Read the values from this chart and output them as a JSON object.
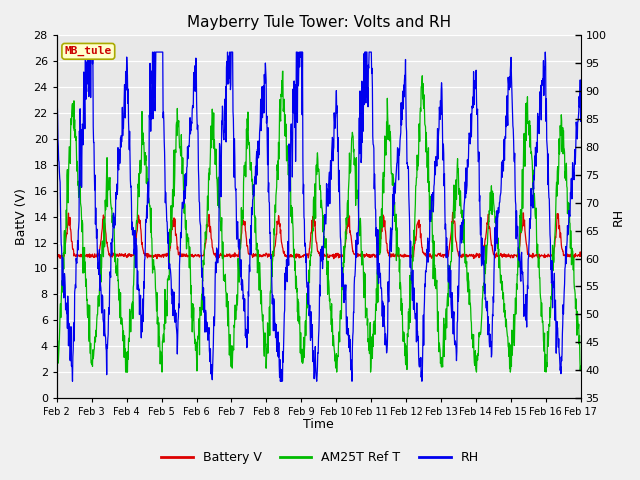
{
  "title": "Mayberry Tule Tower: Volts and RH",
  "xlabel": "Time",
  "ylabel_left": "BattV (V)",
  "ylabel_right": "RH",
  "ylim_left": [
    0,
    28
  ],
  "ylim_right": [
    35,
    100
  ],
  "yticks_left": [
    0,
    2,
    4,
    6,
    8,
    10,
    12,
    14,
    16,
    18,
    20,
    22,
    24,
    26,
    28
  ],
  "yticks_right": [
    35,
    40,
    45,
    50,
    55,
    60,
    65,
    70,
    75,
    80,
    85,
    90,
    95,
    100
  ],
  "xtick_labels": [
    "Feb 2",
    "Feb 3",
    "Feb 4",
    "Feb 5",
    "Feb 6",
    "Feb 7",
    "Feb 8",
    "Feb 9",
    "Feb 10",
    "Feb 11",
    "Feb 12",
    "Feb 13",
    "Feb 14",
    "Feb 15",
    "Feb 16",
    "Feb 17"
  ],
  "legend_labels": [
    "Battery V",
    "AM25T Ref T",
    "RH"
  ],
  "legend_colors": [
    "#dd0000",
    "#00bb00",
    "#0000ee"
  ],
  "color_battery": "#dd0000",
  "color_am25t": "#00bb00",
  "color_rh": "#0000ee",
  "tag_text": "MB_tule",
  "tag_color": "#cc0000",
  "tag_bg": "#ffffcc",
  "tag_edge": "#aaaa00",
  "bg_color": "#e8e8e8",
  "fig_color": "#f0f0f0",
  "grid_color": "#ffffff",
  "title_fontsize": 11,
  "axis_fontsize": 9,
  "tick_fontsize": 8,
  "legend_fontsize": 9,
  "num_days": 15,
  "points_per_day": 96
}
